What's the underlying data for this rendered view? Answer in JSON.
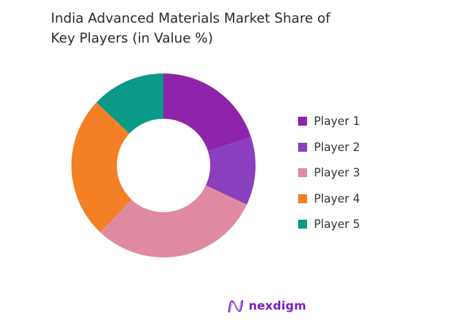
{
  "chart_data": {
    "type": "pie",
    "variant": "donut",
    "title": "India Advanced Materials Market Share of Key Players (in Value %)",
    "categories": [
      "Player 1",
      "Player 2",
      "Player 3",
      "Player 4",
      "Player 5"
    ],
    "values": [
      20,
      12,
      30,
      25,
      13
    ],
    "colors": [
      "#8e24aa",
      "#8a3fbf",
      "#e08aa2",
      "#f47f24",
      "#0b9988"
    ],
    "legend_position": "right"
  },
  "brand": {
    "name": "nexdigm",
    "color": "#7a1fc4"
  }
}
